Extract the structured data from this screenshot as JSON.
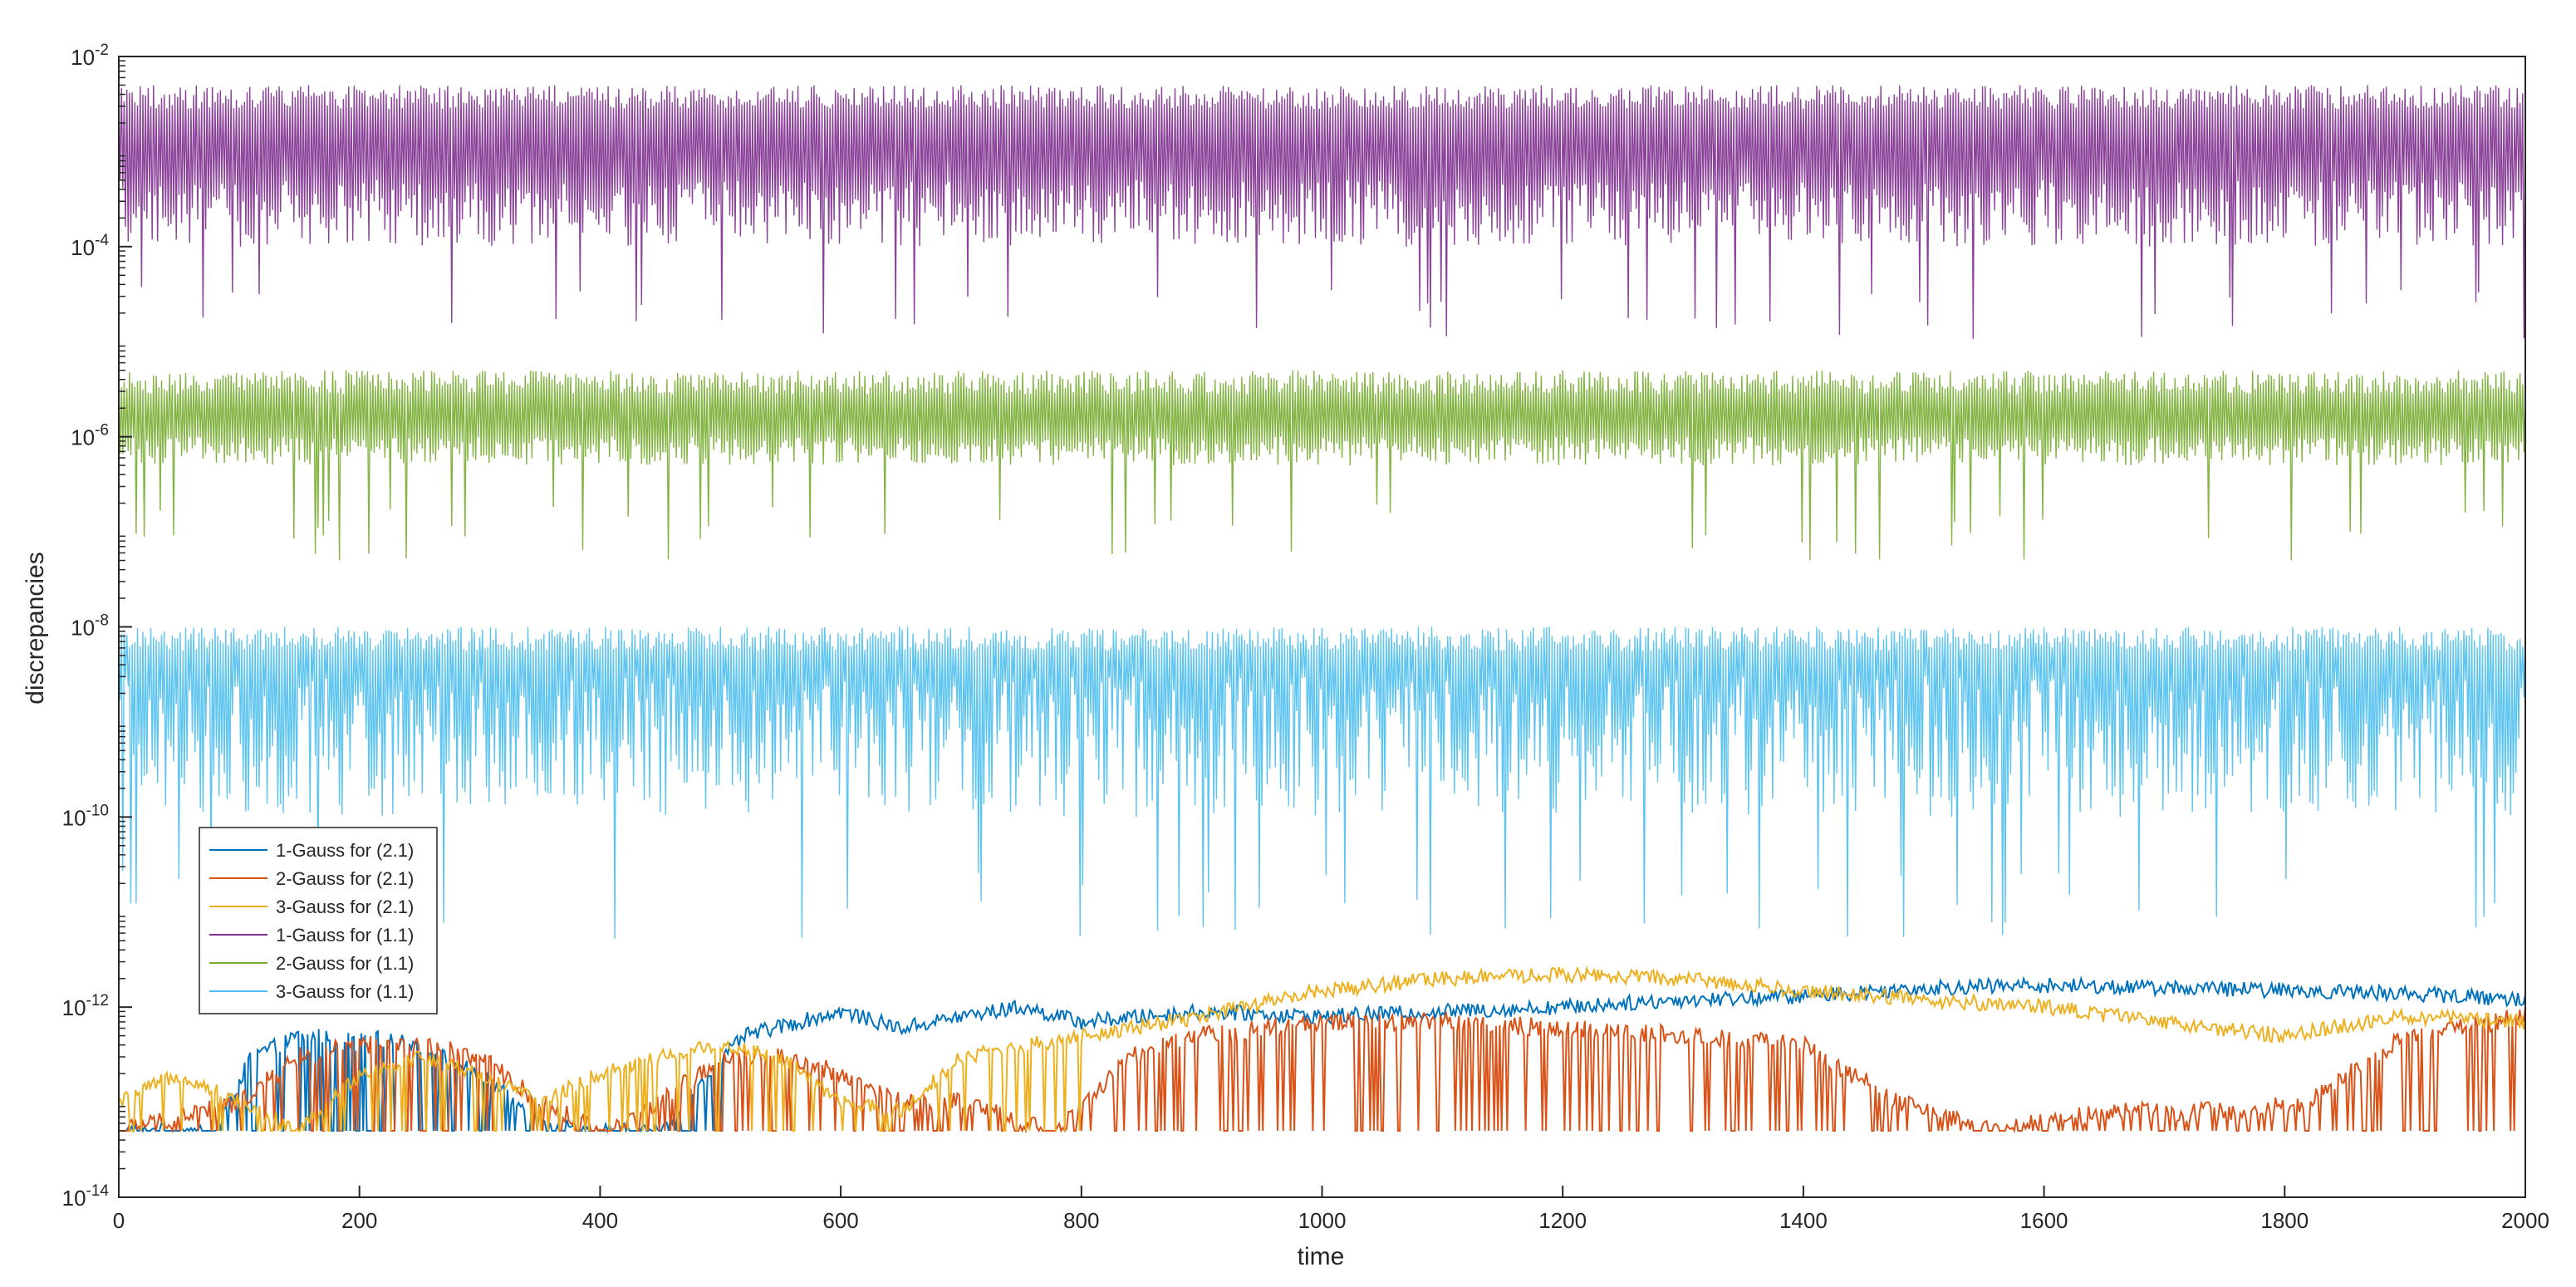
{
  "chart_data": {
    "type": "line",
    "title": "",
    "xlabel": "time",
    "ylabel": "discrepancies",
    "xlim": [
      0,
      2000
    ],
    "ylim": [
      1e-14,
      0.01
    ],
    "yscale": "log",
    "grid": false,
    "legend_position": "lower-left",
    "x_ticks": [
      0,
      200,
      400,
      600,
      800,
      1000,
      1200,
      1400,
      1600,
      1800,
      2000
    ],
    "x_tick_labels": [
      "0",
      "200",
      "400",
      "600",
      "800",
      "1000",
      "1200",
      "1400",
      "1600",
      "1800",
      "2000"
    ],
    "y_ticks": [
      {
        "value": 1e-14,
        "base": "10",
        "exp": "-14"
      },
      {
        "value": 1e-12,
        "base": "10",
        "exp": "-12"
      },
      {
        "value": 1e-10,
        "base": "10",
        "exp": "-10"
      },
      {
        "value": 1e-08,
        "base": "10",
        "exp": "-8"
      },
      {
        "value": 1e-06,
        "base": "10",
        "exp": "-6"
      },
      {
        "value": 0.0001,
        "base": "10",
        "exp": "-4"
      },
      {
        "value": 0.01,
        "base": "10",
        "exp": "-2"
      }
    ],
    "series": [
      {
        "name": "1-Gauss for (2.1)",
        "color": "#0072BD",
        "knots": [
          [
            0,
            5e-14
          ],
          [
            80,
            5e-14
          ],
          [
            110,
            3e-13
          ],
          [
            150,
            5e-13
          ],
          [
            200,
            5e-13
          ],
          [
            250,
            4e-13
          ],
          [
            300,
            2e-13
          ],
          [
            330,
            1e-13
          ],
          [
            380,
            5e-14
          ],
          [
            450,
            5e-14
          ],
          [
            490,
            2e-13
          ],
          [
            520,
            5e-13
          ],
          [
            600,
            9e-13
          ],
          [
            650,
            6e-13
          ],
          [
            700,
            8e-13
          ],
          [
            750,
            1e-12
          ],
          [
            800,
            7e-13
          ],
          [
            900,
            9e-13
          ],
          [
            1000,
            8e-13
          ],
          [
            1100,
            9e-13
          ],
          [
            1200,
            1e-12
          ],
          [
            1300,
            1.2e-12
          ],
          [
            1400,
            1.3e-12
          ],
          [
            1500,
            1.6e-12
          ],
          [
            1600,
            1.7e-12
          ],
          [
            1700,
            1.6e-12
          ],
          [
            1800,
            1.5e-12
          ],
          [
            1900,
            1.4e-12
          ],
          [
            2000,
            1.2e-12
          ]
        ],
        "noise": 0.08,
        "floor": 5e-14,
        "drop_prob": 0.35,
        "drop_until": 500
      },
      {
        "name": "2-Gauss for (2.1)",
        "color": "#D95319",
        "knots": [
          [
            0,
            5e-14
          ],
          [
            100,
            1e-13
          ],
          [
            150,
            3e-13
          ],
          [
            200,
            4e-13
          ],
          [
            250,
            4e-13
          ],
          [
            300,
            3e-13
          ],
          [
            350,
            1e-13
          ],
          [
            400,
            5e-14
          ],
          [
            450,
            1e-13
          ],
          [
            500,
            3e-13
          ],
          [
            550,
            3e-13
          ],
          [
            600,
            2e-13
          ],
          [
            650,
            1e-13
          ],
          [
            700,
            1e-13
          ],
          [
            780,
            5e-14
          ],
          [
            840,
            3e-13
          ],
          [
            900,
            5e-13
          ],
          [
            1000,
            7e-13
          ],
          [
            1100,
            7e-13
          ],
          [
            1200,
            6e-13
          ],
          [
            1300,
            5e-13
          ],
          [
            1400,
            4e-13
          ],
          [
            1480,
            1e-13
          ],
          [
            1550,
            5e-14
          ],
          [
            1650,
            8e-14
          ],
          [
            1750,
            8e-14
          ],
          [
            1820,
            1e-13
          ],
          [
            1900,
            5e-13
          ],
          [
            2000,
            8e-13
          ]
        ],
        "noise": 0.1,
        "floor": 5e-14,
        "drop_prob": 0.25,
        "drop_until": 2000
      },
      {
        "name": "3-Gauss for (2.1)",
        "color": "#EDB120",
        "knots": [
          [
            0,
            1e-13
          ],
          [
            50,
            2e-13
          ],
          [
            100,
            1e-13
          ],
          [
            150,
            5e-14
          ],
          [
            200,
            2e-13
          ],
          [
            250,
            3e-13
          ],
          [
            300,
            2e-13
          ],
          [
            350,
            1e-13
          ],
          [
            400,
            2e-13
          ],
          [
            450,
            3e-13
          ],
          [
            500,
            4e-13
          ],
          [
            550,
            3e-13
          ],
          [
            600,
            1e-13
          ],
          [
            650,
            8e-14
          ],
          [
            700,
            3e-13
          ],
          [
            800,
            5e-13
          ],
          [
            900,
            8e-13
          ],
          [
            1000,
            1.5e-12
          ],
          [
            1100,
            2e-12
          ],
          [
            1200,
            2.2e-12
          ],
          [
            1300,
            2e-12
          ],
          [
            1400,
            1.5e-12
          ],
          [
            1500,
            1.2e-12
          ],
          [
            1600,
            1e-12
          ],
          [
            1700,
            7e-13
          ],
          [
            1800,
            5e-13
          ],
          [
            1900,
            8e-13
          ],
          [
            2000,
            7e-13
          ]
        ],
        "noise": 0.08,
        "floor": 5e-14,
        "drop_prob": 0.2,
        "drop_until": 800
      },
      {
        "name": "1-Gauss for (1.1)",
        "color": "#7E2F8E",
        "center": 0.0005,
        "top": 0.005,
        "lows": [
          1e-05,
          0.0001
        ],
        "osc": true
      },
      {
        "name": "2-Gauss for (1.1)",
        "color": "#77AC30",
        "center": 1e-06,
        "top": 5e-06,
        "lows": [
          5e-08,
          5e-07
        ],
        "osc": true
      },
      {
        "name": "3-Gauss for (1.1)",
        "color": "#4DBEEE",
        "center": 3e-09,
        "top": 1e-08,
        "lows": [
          5e-12,
          1e-10
        ],
        "osc": true
      }
    ]
  }
}
